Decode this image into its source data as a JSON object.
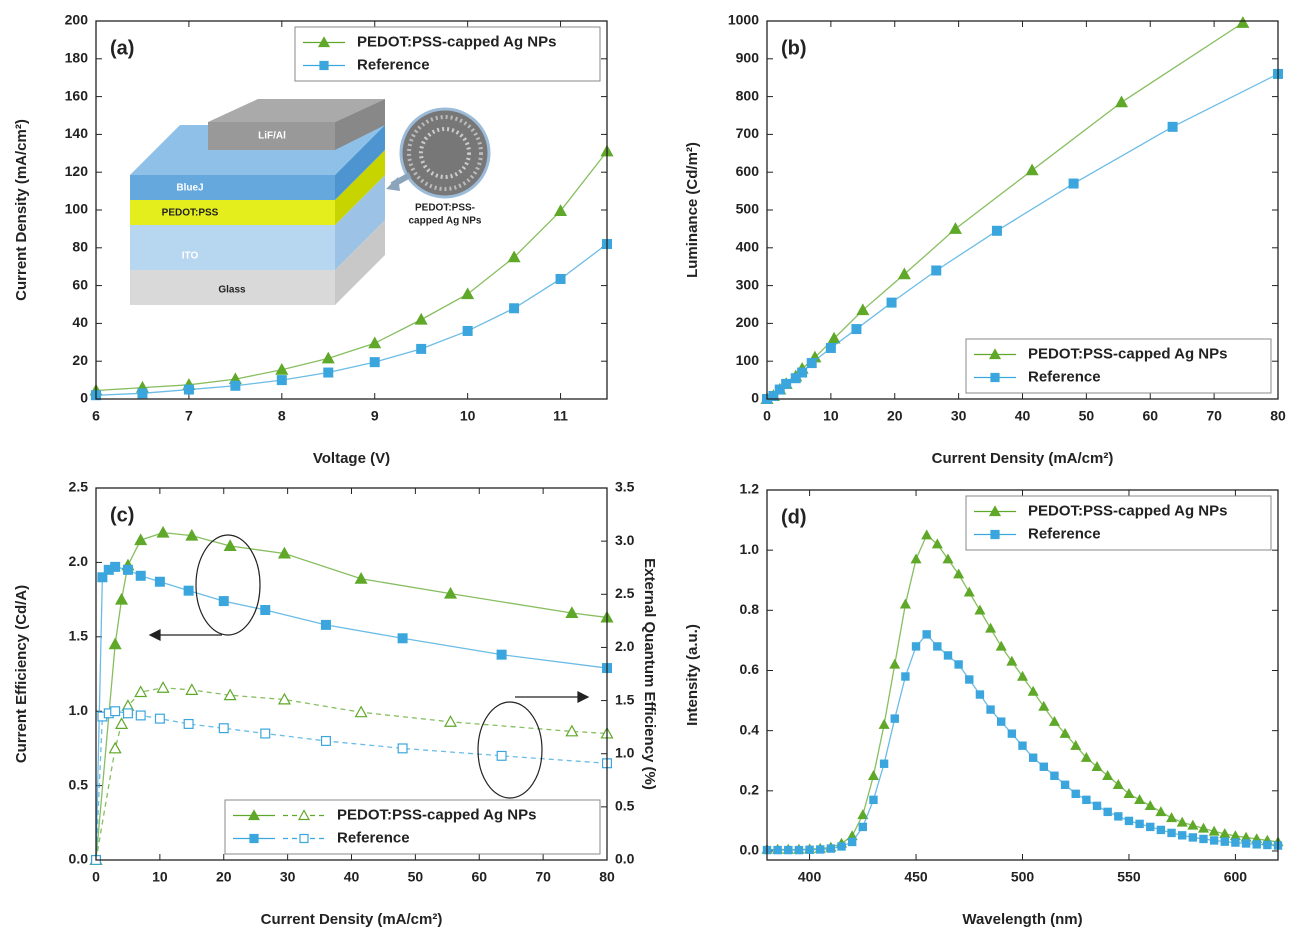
{
  "chart_data": [
    {
      "type": "line",
      "panel_label": "(a)",
      "x_label": "Voltage (V)",
      "y_label": "Current Density (mA/cm²)",
      "xlim": [
        6,
        11.5
      ],
      "xticks": [
        6,
        7,
        8,
        9,
        10,
        11
      ],
      "ylim": [
        0,
        200
      ],
      "yticks": [
        0,
        20,
        40,
        60,
        80,
        100,
        120,
        140,
        160,
        180,
        200
      ],
      "grid": false,
      "legend": "upper right",
      "annotations": [
        "LiF/Al",
        "BlueJ",
        "PEDOT:PSS",
        "ITO",
        "Glass",
        "PEDOT:PSS-",
        "capped Ag NPs"
      ],
      "series": [
        {
          "name": "PEDOT:PSS-capped Ag NPs",
          "color": "#5fa829",
          "marker": "triangle",
          "marker_fill": true,
          "dash": false,
          "x": [
            6,
            6.5,
            7,
            7.5,
            8,
            8.5,
            9,
            9.5,
            10,
            10.5,
            11,
            11.5
          ],
          "values": [
            4.5,
            6,
            7.5,
            10.5,
            15.5,
            21.5,
            29.5,
            42,
            55.5,
            75,
            99.5,
            131
          ]
        },
        {
          "name": "Reference",
          "color": "#3aa6dd",
          "marker": "square",
          "marker_fill": true,
          "dash": false,
          "x": [
            6,
            6.5,
            7,
            7.5,
            8,
            8.5,
            9,
            9.5,
            10,
            10.5,
            11,
            11.5
          ],
          "values": [
            2,
            3,
            5,
            7,
            10,
            14,
            19.5,
            26.5,
            36,
            48,
            63.5,
            82
          ]
        }
      ]
    },
    {
      "type": "line",
      "panel_label": "(b)",
      "x_label": "Current Density (mA/cm²)",
      "y_label": "Luminance (Cd/m²)",
      "xlim": [
        0,
        80
      ],
      "xticks": [
        0,
        10,
        20,
        30,
        40,
        50,
        60,
        70,
        80
      ],
      "ylim": [
        0,
        1000
      ],
      "yticks": [
        0,
        100,
        200,
        300,
        400,
        500,
        600,
        700,
        800,
        900,
        1000
      ],
      "grid": false,
      "legend": "lower right",
      "series": [
        {
          "name": "PEDOT:PSS-capped Ag NPs",
          "color": "#5fa829",
          "marker": "triangle",
          "marker_fill": true,
          "dash": false,
          "x": [
            0,
            1,
            2,
            3,
            4.5,
            5.5,
            7.5,
            10.5,
            15,
            21.5,
            29.5,
            41.5,
            55.5,
            74.5
          ],
          "values": [
            0,
            8,
            25,
            40,
            60,
            80,
            110,
            160,
            235,
            330,
            450,
            605,
            785,
            995
          ]
        },
        {
          "name": "Reference",
          "color": "#3aa6dd",
          "marker": "square",
          "marker_fill": true,
          "dash": false,
          "x": [
            0,
            1,
            2,
            3,
            4.5,
            5.5,
            7,
            10,
            14,
            19.5,
            26.5,
            36,
            48,
            63.5,
            80
          ],
          "values": [
            0,
            8,
            25,
            40,
            55,
            70,
            95,
            135,
            185,
            255,
            340,
            445,
            570,
            720,
            860
          ]
        }
      ]
    },
    {
      "type": "line",
      "panel_label": "(c)",
      "x_label": "Current Density (mA/cm²)",
      "y_label": "Current Efficiency (Cd/A)",
      "y2_label": "External Quantum Efficiency (%)",
      "xlim": [
        0,
        80
      ],
      "xticks": [
        0,
        10,
        20,
        30,
        40,
        50,
        60,
        70,
        80
      ],
      "ylim": [
        0,
        2.5
      ],
      "yticks": [
        {
          "value": 0,
          "label": "0.0"
        },
        0.5,
        {
          "value": 1,
          "label": "1.0"
        },
        1.5,
        {
          "value": 2,
          "label": "2.0"
        },
        2.5
      ],
      "y2lim": [
        0,
        3.5
      ],
      "y2ticks": [
        {
          "value": 0,
          "label": "0.0"
        },
        0.5,
        {
          "value": 1,
          "label": "1.0"
        },
        1.5,
        {
          "value": 2,
          "label": "2.0"
        },
        2.5,
        {
          "value": 3,
          "label": "3.0"
        },
        3.5
      ],
      "grid": false,
      "legend": "lower right",
      "series": [
        {
          "name": "PEDOT:PSS-capped Ag NPs",
          "color": "#5fa829",
          "marker": "triangle",
          "marker_fill": true,
          "dash": false,
          "x": [
            0,
            3,
            4,
            5,
            7,
            10.5,
            15,
            21,
            29.5,
            41.5,
            55.5,
            74.5,
            80
          ],
          "values": [
            0,
            1.45,
            1.75,
            1.98,
            2.15,
            2.2,
            2.18,
            2.11,
            2.06,
            1.89,
            1.79,
            1.66,
            1.63
          ]
        },
        {
          "name": "Reference",
          "color": "#3aa6dd",
          "marker": "square",
          "marker_fill": true,
          "dash": false,
          "x": [
            0,
            1,
            2,
            3,
            5,
            7,
            10,
            14.5,
            20,
            26.5,
            36,
            48,
            63.5,
            80
          ],
          "values": [
            0,
            1.9,
            1.95,
            1.97,
            1.95,
            1.91,
            1.87,
            1.81,
            1.74,
            1.68,
            1.58,
            1.49,
            1.38,
            1.29
          ]
        },
        {
          "axis": "y2",
          "color": "#5fa829",
          "marker": "triangle",
          "marker_fill": false,
          "dash": true,
          "x": [
            0,
            3,
            4,
            5,
            7,
            10.5,
            15,
            21,
            29.5,
            41.5,
            55.5,
            74.5,
            80
          ],
          "values": [
            0,
            1.05,
            1.28,
            1.45,
            1.58,
            1.62,
            1.6,
            1.55,
            1.51,
            1.39,
            1.3,
            1.21,
            1.19
          ]
        },
        {
          "axis": "y2",
          "color": "#3aa6dd",
          "marker": "square",
          "marker_fill": false,
          "dash": true,
          "x": [
            0,
            1,
            2,
            3,
            5,
            7,
            10,
            14.5,
            20,
            26.5,
            36,
            48,
            63.5,
            80
          ],
          "values": [
            0,
            1.35,
            1.38,
            1.4,
            1.38,
            1.36,
            1.33,
            1.28,
            1.24,
            1.19,
            1.12,
            1.05,
            0.98,
            0.91
          ]
        }
      ]
    },
    {
      "type": "line",
      "panel_label": "(d)",
      "x_label": "Wavelength (nm)",
      "y_label": "Intensity (a.u.)",
      "xlim": [
        380,
        620
      ],
      "xticks": [
        400,
        450,
        500,
        550,
        600
      ],
      "ylim": [
        -0.03,
        1.2
      ],
      "yticks": [
        {
          "value": 0,
          "label": "0.0"
        },
        0.2,
        0.4,
        0.6,
        0.8,
        {
          "value": 1,
          "label": "1.0"
        },
        1.2
      ],
      "grid": false,
      "legend": "upper right",
      "series": [
        {
          "name": "PEDOT:PSS-capped Ag NPs",
          "color": "#5fa829",
          "marker": "triangle",
          "marker_fill": true,
          "dash": false,
          "x": [
            380,
            385,
            390,
            395,
            400,
            405,
            410,
            415,
            420,
            425,
            430,
            435,
            440,
            445,
            450,
            455,
            460,
            465,
            470,
            475,
            480,
            485,
            490,
            495,
            500,
            505,
            510,
            515,
            520,
            525,
            530,
            535,
            540,
            545,
            550,
            555,
            560,
            565,
            570,
            575,
            580,
            585,
            590,
            595,
            600,
            605,
            610,
            615,
            620
          ],
          "values": [
            0.005,
            0.005,
            0.005,
            0.005,
            0.006,
            0.008,
            0.012,
            0.025,
            0.05,
            0.12,
            0.25,
            0.42,
            0.62,
            0.82,
            0.97,
            1.05,
            1.02,
            0.97,
            0.92,
            0.86,
            0.8,
            0.74,
            0.68,
            0.63,
            0.58,
            0.53,
            0.48,
            0.43,
            0.39,
            0.35,
            0.31,
            0.28,
            0.25,
            0.22,
            0.19,
            0.17,
            0.15,
            0.13,
            0.11,
            0.095,
            0.085,
            0.075,
            0.065,
            0.057,
            0.05,
            0.045,
            0.04,
            0.035,
            0.03
          ]
        },
        {
          "name": "Reference",
          "color": "#3aa6dd",
          "marker": "square",
          "marker_fill": true,
          "dash": false,
          "x": [
            380,
            385,
            390,
            395,
            400,
            405,
            410,
            415,
            420,
            425,
            430,
            435,
            440,
            445,
            450,
            455,
            460,
            465,
            470,
            475,
            480,
            485,
            490,
            495,
            500,
            505,
            510,
            515,
            520,
            525,
            530,
            535,
            540,
            545,
            550,
            555,
            560,
            565,
            570,
            575,
            580,
            585,
            590,
            595,
            600,
            605,
            610,
            615,
            620
          ],
          "values": [
            0.003,
            0.003,
            0.003,
            0.003,
            0.004,
            0.005,
            0.008,
            0.015,
            0.03,
            0.08,
            0.17,
            0.29,
            0.44,
            0.58,
            0.68,
            0.72,
            0.68,
            0.65,
            0.62,
            0.57,
            0.52,
            0.47,
            0.43,
            0.39,
            0.35,
            0.31,
            0.28,
            0.25,
            0.22,
            0.19,
            0.17,
            0.15,
            0.13,
            0.115,
            0.1,
            0.09,
            0.08,
            0.07,
            0.06,
            0.052,
            0.045,
            0.04,
            0.035,
            0.031,
            0.028,
            0.025,
            0.022,
            0.02,
            0.018
          ]
        }
      ]
    }
  ]
}
